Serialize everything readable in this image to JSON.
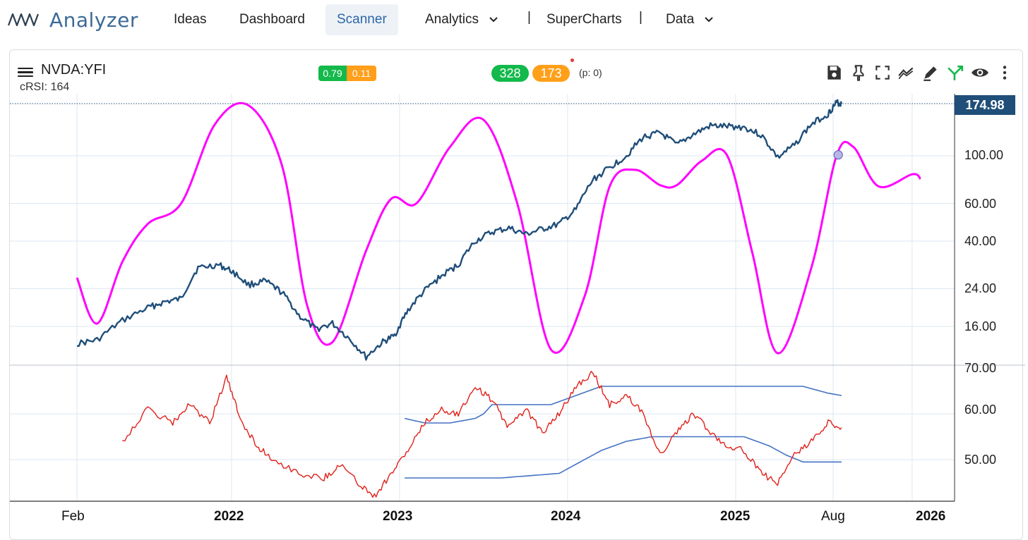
{
  "nav": {
    "logo_text": "Analyzer",
    "items": [
      {
        "label": "Ideas"
      },
      {
        "label": "Dashboard"
      },
      {
        "label": "Scanner",
        "active": true
      },
      {
        "label": "Analytics",
        "dropdown": true
      },
      {
        "label": "SuperCharts"
      },
      {
        "label": "Data",
        "dropdown": true
      }
    ],
    "separator": "|"
  },
  "chart_header": {
    "symbol": "NVDA:YFI",
    "subtitle": "cRSI: 164",
    "badge_left": "0.79",
    "badge_right": "0.11",
    "count_green": "328",
    "count_orange": "173",
    "p_label": "(p: 0)",
    "toolbar_icons": [
      "save-icon",
      "pin-icon",
      "fullscreen-icon",
      "compare-icon",
      "drawing-icon",
      "signal-icon",
      "eye-icon",
      "more-vert-icon"
    ]
  },
  "colors": {
    "price_line": "#1f4e79",
    "cycle_line": "#ff00ff",
    "rsi_line": "#e0201a",
    "band_line": "#4472c4",
    "grid": "#dce7f2",
    "badge_green": "#13b94a",
    "badge_orange": "#ff9f1a"
  },
  "chart_data": [
    {
      "type": "line",
      "name": "price",
      "scale": "log",
      "last_price_label": "174.98",
      "y_ticks": [
        "100.00",
        "60.00",
        "40.00",
        "24.00",
        "16.00"
      ],
      "x_ticks": [
        {
          "label": "Feb",
          "bold": false
        },
        {
          "label": "2022",
          "bold": true
        },
        {
          "label": "2023",
          "bold": true
        },
        {
          "label": "2024",
          "bold": true
        },
        {
          "label": "2025",
          "bold": true
        },
        {
          "label": "Aug",
          "bold": false
        },
        {
          "label": "2026",
          "bold": true
        }
      ],
      "series": [
        {
          "points": [
            [
              2021.08,
              13.3
            ],
            [
              2021.2,
              13.8
            ],
            [
              2021.35,
              17
            ],
            [
              2021.5,
              19.5
            ],
            [
              2021.6,
              20.8
            ],
            [
              2021.7,
              21.5
            ],
            [
              2021.8,
              30
            ],
            [
              2021.92,
              31
            ],
            [
              2022.0,
              29
            ],
            [
              2022.1,
              25
            ],
            [
              2022.2,
              26
            ],
            [
              2022.3,
              23
            ],
            [
              2022.4,
              18
            ],
            [
              2022.5,
              15.5
            ],
            [
              2022.6,
              16.5
            ],
            [
              2022.7,
              14
            ],
            [
              2022.8,
              11.5
            ],
            [
              2022.9,
              13.5
            ],
            [
              2022.97,
              14.5
            ],
            [
              2023.05,
              19
            ],
            [
              2023.15,
              23.5
            ],
            [
              2023.25,
              27.5
            ],
            [
              2023.35,
              31
            ],
            [
              2023.45,
              40
            ],
            [
              2023.55,
              44
            ],
            [
              2023.65,
              46
            ],
            [
              2023.75,
              43
            ],
            [
              2023.85,
              45.5
            ],
            [
              2023.95,
              48
            ],
            [
              2024.05,
              56
            ],
            [
              2024.15,
              77
            ],
            [
              2024.25,
              88
            ],
            [
              2024.35,
              100
            ],
            [
              2024.45,
              122
            ],
            [
              2024.55,
              128
            ],
            [
              2024.65,
              112
            ],
            [
              2024.75,
              126
            ],
            [
              2024.85,
              138
            ],
            [
              2024.95,
              137
            ],
            [
              2025.05,
              136
            ],
            [
              2025.15,
              125
            ],
            [
              2025.25,
              98
            ],
            [
              2025.35,
              112
            ],
            [
              2025.45,
              140
            ],
            [
              2025.55,
              157
            ],
            [
              2025.6,
              177
            ],
            [
              2025.63,
              175
            ]
          ]
        }
      ]
    },
    {
      "type": "line",
      "name": "cycle",
      "series": [
        {
          "points": [
            [
              2021.08,
              27
            ],
            [
              2021.2,
              16.5
            ],
            [
              2021.35,
              32
            ],
            [
              2021.5,
              48
            ],
            [
              2021.7,
              60
            ],
            [
              2021.9,
              140
            ],
            [
              2022.1,
              172
            ],
            [
              2022.3,
              90
            ],
            [
              2022.45,
              20
            ],
            [
              2022.6,
              13.5
            ],
            [
              2022.8,
              36
            ],
            [
              2022.95,
              63
            ],
            [
              2023.1,
              60
            ],
            [
              2023.3,
              110
            ],
            [
              2023.5,
              147
            ],
            [
              2023.7,
              60
            ],
            [
              2023.9,
              12.5
            ],
            [
              2024.1,
              22
            ],
            [
              2024.25,
              72
            ],
            [
              2024.4,
              86
            ],
            [
              2024.55,
              73
            ],
            [
              2024.65,
              73
            ],
            [
              2024.8,
              95
            ],
            [
              2024.95,
              100
            ],
            [
              2025.1,
              35
            ],
            [
              2025.25,
              12
            ],
            [
              2025.45,
              30
            ],
            [
              2025.6,
              100
            ],
            [
              2025.7,
              110
            ],
            [
              2025.85,
              72
            ],
            [
              2026.05,
              82
            ],
            [
              2026.1,
              78
            ]
          ]
        }
      ],
      "marker": [
        2025.61,
        101
      ]
    },
    {
      "type": "line",
      "name": "rsi",
      "y_ticks": [
        "70.00",
        "60.00",
        "50.00"
      ],
      "series": [
        {
          "name": "rsi",
          "points": [
            [
              2021.35,
              54
            ],
            [
              2021.5,
              61
            ],
            [
              2021.65,
              58
            ],
            [
              2021.75,
              62
            ],
            [
              2021.87,
              58
            ],
            [
              2021.97,
              68
            ],
            [
              2022.05,
              59
            ],
            [
              2022.15,
              53
            ],
            [
              2022.25,
              50
            ],
            [
              2022.4,
              47
            ],
            [
              2022.55,
              46
            ],
            [
              2022.65,
              49
            ],
            [
              2022.75,
              45
            ],
            [
              2022.85,
              42
            ],
            [
              2022.95,
              47
            ],
            [
              2023.05,
              52
            ],
            [
              2023.15,
              58
            ],
            [
              2023.25,
              61
            ],
            [
              2023.35,
              60
            ],
            [
              2023.45,
              66
            ],
            [
              2023.55,
              63
            ],
            [
              2023.65,
              57
            ],
            [
              2023.75,
              61
            ],
            [
              2023.85,
              56
            ],
            [
              2023.95,
              60
            ],
            [
              2024.05,
              66
            ],
            [
              2024.15,
              69
            ],
            [
              2024.25,
              62
            ],
            [
              2024.35,
              64
            ],
            [
              2024.45,
              60
            ],
            [
              2024.55,
              51
            ],
            [
              2024.65,
              56
            ],
            [
              2024.75,
              60
            ],
            [
              2024.85,
              56
            ],
            [
              2024.95,
              53
            ],
            [
              2025.05,
              52
            ],
            [
              2025.15,
              47
            ],
            [
              2025.25,
              45
            ],
            [
              2025.35,
              51
            ],
            [
              2025.45,
              54
            ],
            [
              2025.55,
              58
            ],
            [
              2025.63,
              57
            ]
          ]
        },
        {
          "name": "upper-band",
          "points": [
            [
              2023.03,
              59
            ],
            [
              2023.15,
              58
            ],
            [
              2023.3,
              58
            ],
            [
              2023.45,
              59
            ],
            [
              2023.5,
              60
            ],
            [
              2023.55,
              62
            ],
            [
              2023.7,
              62
            ],
            [
              2023.9,
              62
            ],
            [
              2024.05,
              64
            ],
            [
              2024.2,
              66
            ],
            [
              2024.4,
              66
            ],
            [
              2024.6,
              66
            ],
            [
              2024.8,
              66
            ],
            [
              2025.0,
              66
            ],
            [
              2025.2,
              66
            ],
            [
              2025.4,
              66
            ],
            [
              2025.5,
              65
            ],
            [
              2025.55,
              64.5
            ],
            [
              2025.63,
              64
            ]
          ]
        },
        {
          "name": "lower-band",
          "points": [
            [
              2023.03,
              46
            ],
            [
              2023.3,
              46
            ],
            [
              2023.6,
              46
            ],
            [
              2023.95,
              47
            ],
            [
              2024.05,
              49
            ],
            [
              2024.2,
              52
            ],
            [
              2024.35,
              54
            ],
            [
              2024.5,
              55
            ],
            [
              2024.7,
              55
            ],
            [
              2024.9,
              55
            ],
            [
              2025.05,
              55
            ],
            [
              2025.2,
              53
            ],
            [
              2025.3,
              51
            ],
            [
              2025.4,
              49.5
            ],
            [
              2025.5,
              49.5
            ],
            [
              2025.63,
              49.5
            ]
          ]
        }
      ]
    }
  ]
}
